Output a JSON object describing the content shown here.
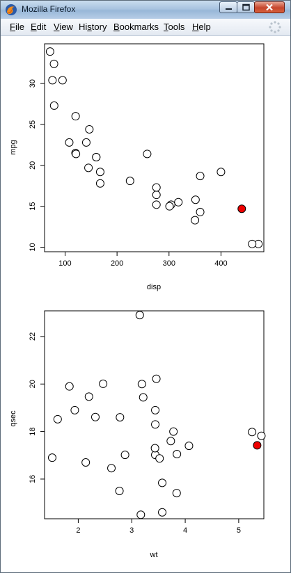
{
  "window": {
    "title": "Mozilla Firefox",
    "menus": [
      {
        "key": "F",
        "rest": "ile"
      },
      {
        "key": "E",
        "rest": "dit"
      },
      {
        "key": "V",
        "rest": "iew"
      },
      {
        "pre": "Hi",
        "key": "s",
        "rest": "tory"
      },
      {
        "key": "B",
        "rest": "ookmarks"
      },
      {
        "key": "T",
        "rest": "ools"
      },
      {
        "key": "H",
        "rest": "elp"
      }
    ]
  },
  "colors": {
    "highlight": "#ee0000",
    "point_fill": "#ffffff",
    "point_stroke": "#000000"
  },
  "chart_data": [
    {
      "type": "scatter",
      "xlabel": "disp",
      "ylabel": "mpg",
      "xticks": [
        100,
        200,
        300,
        400
      ],
      "yticks": [
        10,
        15,
        20,
        25,
        30
      ],
      "xlim": [
        60.5,
        482.5
      ],
      "ylim": [
        9.45,
        34.85
      ],
      "points": [
        [
          160,
          21.0
        ],
        [
          160,
          21.0
        ],
        [
          108,
          22.8
        ],
        [
          258,
          21.4
        ],
        [
          360,
          18.7
        ],
        [
          225,
          18.1
        ],
        [
          360,
          14.3
        ],
        [
          146.7,
          24.4
        ],
        [
          140.8,
          22.8
        ],
        [
          167.6,
          19.2
        ],
        [
          167.6,
          17.8
        ],
        [
          275.8,
          16.4
        ],
        [
          275.8,
          17.3
        ],
        [
          275.8,
          15.2
        ],
        [
          472,
          10.4
        ],
        [
          460,
          10.4
        ],
        [
          440,
          14.7
        ],
        [
          78.7,
          32.4
        ],
        [
          75.7,
          30.4
        ],
        [
          71.1,
          33.9
        ],
        [
          120.1,
          21.5
        ],
        [
          318,
          15.5
        ],
        [
          304,
          15.2
        ],
        [
          350,
          13.3
        ],
        [
          400,
          19.2
        ],
        [
          79,
          27.3
        ],
        [
          120.3,
          26.0
        ],
        [
          95.1,
          30.4
        ],
        [
          351,
          15.8
        ],
        [
          145,
          19.7
        ],
        [
          301,
          15.0
        ],
        [
          121,
          21.4
        ]
      ],
      "highlight_index": 16
    },
    {
      "type": "scatter",
      "xlabel": "wt",
      "ylabel": "qsec",
      "xticks": [
        2,
        3,
        4,
        5
      ],
      "yticks": [
        16,
        18,
        20,
        22
      ],
      "xlim": [
        1.37,
        5.47
      ],
      "ylim": [
        14.33,
        23.08
      ],
      "points": [
        [
          2.62,
          16.46
        ],
        [
          2.875,
          17.02
        ],
        [
          2.32,
          18.61
        ],
        [
          3.215,
          19.44
        ],
        [
          3.44,
          17.02
        ],
        [
          3.46,
          20.22
        ],
        [
          3.57,
          15.84
        ],
        [
          3.19,
          20.0
        ],
        [
          3.15,
          22.9
        ],
        [
          3.44,
          18.3
        ],
        [
          3.44,
          18.9
        ],
        [
          4.07,
          17.4
        ],
        [
          3.73,
          17.6
        ],
        [
          3.78,
          18.0
        ],
        [
          5.25,
          17.98
        ],
        [
          5.424,
          17.82
        ],
        [
          5.345,
          17.42
        ],
        [
          2.2,
          19.47
        ],
        [
          1.615,
          18.52
        ],
        [
          1.835,
          19.9
        ],
        [
          2.465,
          20.01
        ],
        [
          3.52,
          16.87
        ],
        [
          3.435,
          17.3
        ],
        [
          3.84,
          15.41
        ],
        [
          3.845,
          17.05
        ],
        [
          1.935,
          18.9
        ],
        [
          2.14,
          16.7
        ],
        [
          1.513,
          16.9
        ],
        [
          3.17,
          14.5
        ],
        [
          2.77,
          15.5
        ],
        [
          3.57,
          14.6
        ],
        [
          2.78,
          18.6
        ]
      ],
      "highlight_index": 16
    }
  ]
}
